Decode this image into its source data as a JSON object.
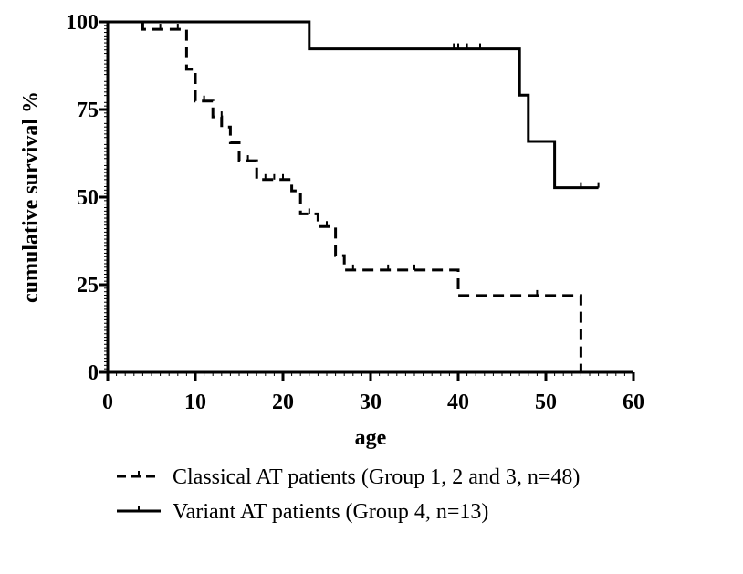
{
  "chart_data": {
    "type": "line",
    "step": true,
    "title": "",
    "xlabel": "age",
    "ylabel": "cumulative survival %",
    "xlim": [
      0,
      60
    ],
    "ylim": [
      0,
      100
    ],
    "xticks": [
      0,
      10,
      20,
      30,
      40,
      50,
      60
    ],
    "yticks": [
      0,
      25,
      50,
      75,
      100
    ],
    "grid": false,
    "legend_position": "bottom",
    "series": [
      {
        "name": "Classical  AT patients  (Group 1, 2 and 3, n=48)",
        "style": "dashed",
        "color": "#000000",
        "steps": [
          [
            0,
            100
          ],
          [
            4,
            97.9
          ],
          [
            9,
            86.5
          ],
          [
            10,
            77.4
          ],
          [
            12,
            72.9
          ],
          [
            13,
            70
          ],
          [
            14,
            65.5
          ],
          [
            15,
            60.4
          ],
          [
            17,
            55
          ],
          [
            21,
            51.8
          ],
          [
            22,
            45.2
          ],
          [
            24,
            41.6
          ],
          [
            26,
            33.3
          ],
          [
            27,
            29.2
          ],
          [
            40,
            21.9
          ],
          [
            54,
            0
          ]
        ],
        "censored": [
          [
            4,
            97.9
          ],
          [
            6,
            97.9
          ],
          [
            8,
            97.9
          ],
          [
            11,
            77.4
          ],
          [
            13,
            72.9
          ],
          [
            16,
            60.4
          ],
          [
            18,
            55
          ],
          [
            19,
            55
          ],
          [
            20,
            55
          ],
          [
            23,
            45.2
          ],
          [
            25,
            41.6
          ],
          [
            28,
            29.2
          ],
          [
            32,
            29.2
          ],
          [
            35,
            29.2
          ],
          [
            49,
            21.9
          ]
        ]
      },
      {
        "name": "Variant AT patients (Group 4, n=13)",
        "style": "solid",
        "color": "#000000",
        "steps": [
          [
            0,
            100
          ],
          [
            23,
            92.3
          ],
          [
            47,
            79.1
          ],
          [
            48,
            65.9
          ],
          [
            51,
            52.7
          ],
          [
            56,
            52.7
          ]
        ],
        "censored": [
          [
            39.5,
            92.3
          ],
          [
            40,
            92.3
          ],
          [
            41,
            92.3
          ],
          [
            42.5,
            92.3
          ],
          [
            54,
            52.7
          ],
          [
            56,
            52.7
          ]
        ]
      }
    ]
  }
}
